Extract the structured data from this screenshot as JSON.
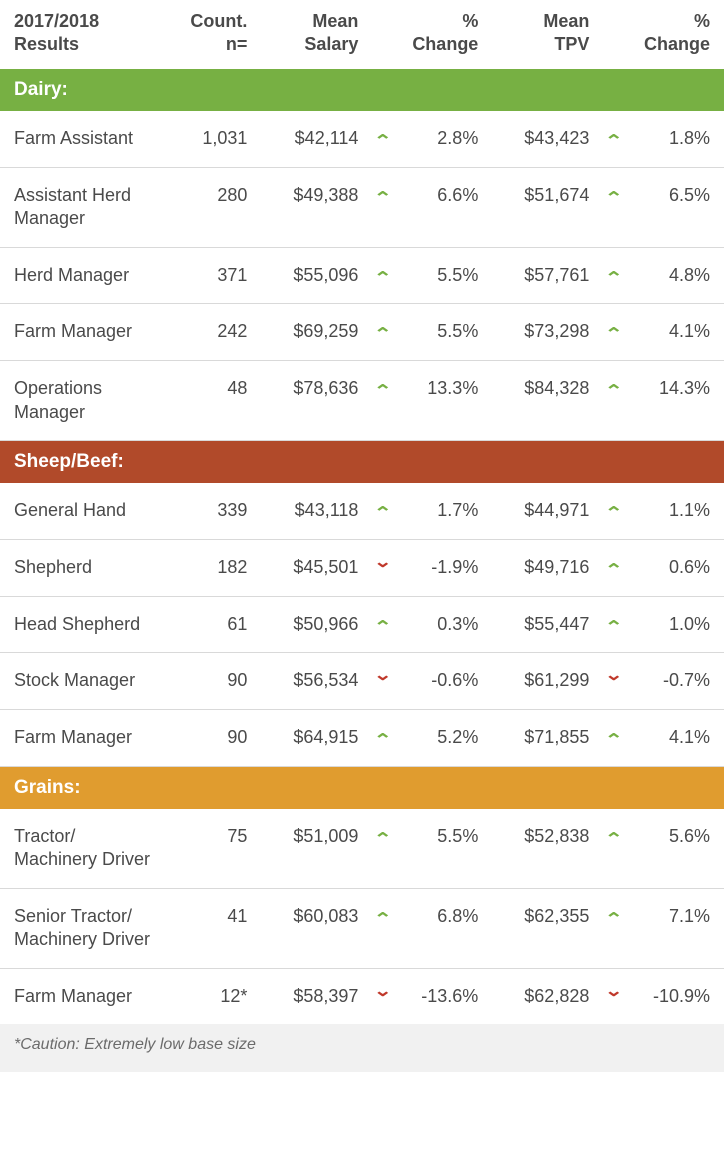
{
  "colors": {
    "up": "#77b043",
    "down": "#c0392b",
    "text": "#4a4a4a",
    "border": "#d9d9d9",
    "footnote_bg": "#f1f1f1"
  },
  "headers": {
    "results": "2017/2018 Results",
    "count": "Count. n=",
    "salary": "Mean Salary",
    "change1": "% Change",
    "tpv": "Mean TPV",
    "change2": "% Change"
  },
  "sections": [
    {
      "title": "Dairy:",
      "bg": "#77b043",
      "rows": [
        {
          "role": "Farm Assistant",
          "count": "1,031",
          "salary": "$42,114",
          "dir1": "up",
          "chg1": "2.8%",
          "tpv": "$43,423",
          "dir2": "up",
          "chg2": "1.8%"
        },
        {
          "role": "Assistant Herd Manager",
          "count": "280",
          "salary": "$49,388",
          "dir1": "up",
          "chg1": "6.6%",
          "tpv": "$51,674",
          "dir2": "up",
          "chg2": "6.5%"
        },
        {
          "role": "Herd Manager",
          "count": "371",
          "salary": "$55,096",
          "dir1": "up",
          "chg1": "5.5%",
          "tpv": "$57,761",
          "dir2": "up",
          "chg2": "4.8%"
        },
        {
          "role": "Farm Manager",
          "count": "242",
          "salary": "$69,259",
          "dir1": "up",
          "chg1": "5.5%",
          "tpv": "$73,298",
          "dir2": "up",
          "chg2": "4.1%"
        },
        {
          "role": "Operations Manager",
          "count": "48",
          "salary": "$78,636",
          "dir1": "up",
          "chg1": "13.3%",
          "tpv": "$84,328",
          "dir2": "up",
          "chg2": "14.3%"
        }
      ]
    },
    {
      "title": "Sheep/Beef:",
      "bg": "#b14a2a",
      "rows": [
        {
          "role": "General Hand",
          "count": "339",
          "salary": "$43,118",
          "dir1": "up",
          "chg1": "1.7%",
          "tpv": "$44,971",
          "dir2": "up",
          "chg2": "1.1%"
        },
        {
          "role": "Shepherd",
          "count": "182",
          "salary": "$45,501",
          "dir1": "down",
          "chg1": "-1.9%",
          "tpv": "$49,716",
          "dir2": "up",
          "chg2": "0.6%"
        },
        {
          "role": "Head Shepherd",
          "count": "61",
          "salary": "$50,966",
          "dir1": "up",
          "chg1": "0.3%",
          "tpv": "$55,447",
          "dir2": "up",
          "chg2": "1.0%"
        },
        {
          "role": "Stock Manager",
          "count": "90",
          "salary": "$56,534",
          "dir1": "down",
          "chg1": "-0.6%",
          "tpv": "$61,299",
          "dir2": "down",
          "chg2": "-0.7%"
        },
        {
          "role": "Farm Manager",
          "count": "90",
          "salary": "$64,915",
          "dir1": "up",
          "chg1": "5.2%",
          "tpv": "$71,855",
          "dir2": "up",
          "chg2": "4.1%"
        }
      ]
    },
    {
      "title": "Grains:",
      "bg": "#e09c2f",
      "rows": [
        {
          "role": "Tractor/\nMachinery Driver",
          "count": "75",
          "salary": "$51,009",
          "dir1": "up",
          "chg1": "5.5%",
          "tpv": "$52,838",
          "dir2": "up",
          "chg2": "5.6%"
        },
        {
          "role": "Senior Tractor/\nMachinery Driver",
          "count": "41",
          "salary": "$60,083",
          "dir1": "up",
          "chg1": "6.8%",
          "tpv": "$62,355",
          "dir2": "up",
          "chg2": "7.1%"
        },
        {
          "role": "Farm Manager",
          "count": "12*",
          "salary": "$58,397",
          "dir1": "down",
          "chg1": "-13.6%",
          "tpv": "$62,828",
          "dir2": "down",
          "chg2": "-10.9%"
        }
      ]
    }
  ],
  "footnote": "*Caution: Extremely low base size",
  "glyphs": {
    "up": "⌃",
    "down": "⌄"
  }
}
